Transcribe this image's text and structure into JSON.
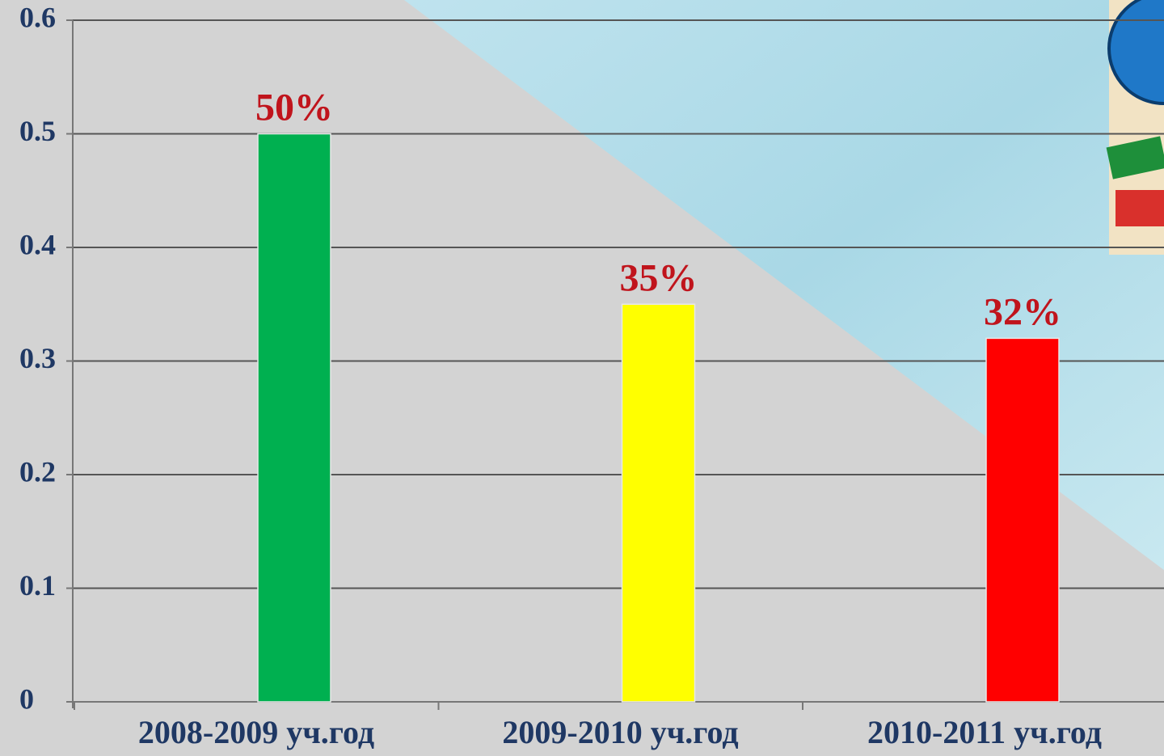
{
  "chart_data": {
    "type": "bar",
    "categories": [
      "2008-2009 уч.год",
      "2009-2010 уч.год",
      "2010-2011 уч.год"
    ],
    "values": [
      0.5,
      0.35,
      0.32
    ],
    "value_labels": [
      "50%",
      "35%",
      "32%"
    ],
    "colors": [
      "#00b050",
      "#ffff00",
      "#ff0000"
    ],
    "ylim": [
      0,
      0.6
    ],
    "yticks": [
      0,
      0.1,
      0.2,
      0.3,
      0.4,
      0.5,
      0.6
    ],
    "grid": true
  }
}
